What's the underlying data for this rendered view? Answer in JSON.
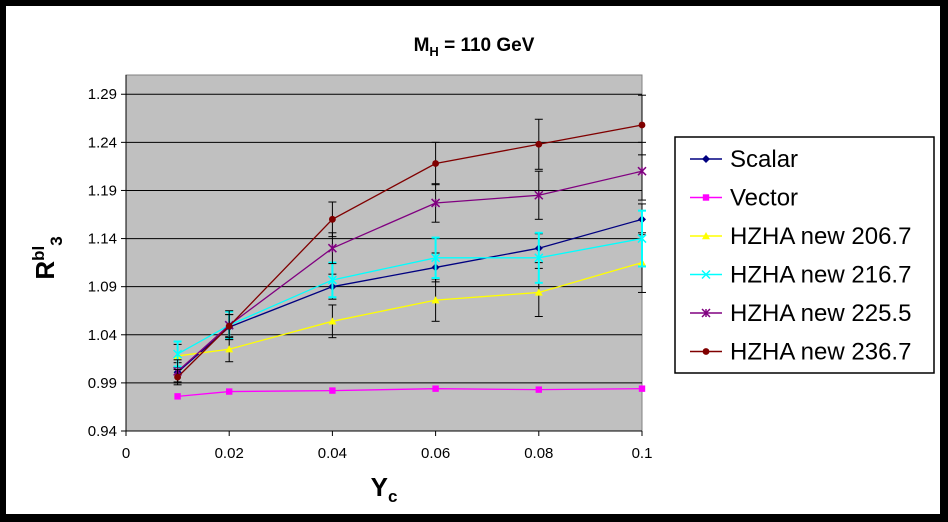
{
  "chart_data": {
    "type": "line",
    "title": "M",
    "title_sub": "H",
    "title_rest": " = 110 GeV",
    "xlabel": "Y",
    "xlabel_sub": "c",
    "ylabel": "R",
    "ylabel_sup": "bl",
    "ylabel_sub": "3",
    "xlim": [
      0,
      0.1
    ],
    "ylim": [
      0.94,
      1.31
    ],
    "x_ticks": [
      "0",
      "0.02",
      "0.04",
      "0.06",
      "0.08",
      "0.1"
    ],
    "x_tick_values": [
      0,
      0.02,
      0.04,
      0.06,
      0.08,
      0.1
    ],
    "y_ticks": [
      "0.94",
      "0.99",
      "1.04",
      "1.09",
      "1.14",
      "1.19",
      "1.24",
      "1.29"
    ],
    "y_tick_values": [
      0.94,
      0.99,
      1.04,
      1.09,
      1.14,
      1.19,
      1.24,
      1.29
    ],
    "grid": "horizontal",
    "plot_background": "#c0c0c0",
    "legend_position": "right",
    "x": [
      0.01,
      0.02,
      0.04,
      0.06,
      0.08,
      0.1
    ],
    "series": [
      {
        "name": "Scalar",
        "color": "#000080",
        "marker": "diamond",
        "values": [
          1.001,
          1.048,
          1.09,
          1.11,
          1.13,
          1.16
        ],
        "errors": [
          0.01,
          0.013,
          0.013,
          0.015,
          0.015,
          0.016
        ]
      },
      {
        "name": "Vector",
        "color": "#ff00ff",
        "marker": "square",
        "values": [
          0.976,
          0.981,
          0.982,
          0.984,
          0.983,
          0.984
        ],
        "errors": [
          0,
          0,
          0,
          0,
          0,
          0
        ]
      },
      {
        "name": "HZHA new 206.7",
        "color": "#ffff00",
        "marker": "triangle",
        "values": [
          1.018,
          1.025,
          1.054,
          1.076,
          1.084,
          1.115
        ],
        "errors": [
          0.012,
          0.013,
          0.017,
          0.022,
          0.025,
          0.031
        ]
      },
      {
        "name": "HZHA new 216.7",
        "color": "#00ffff",
        "marker": "x",
        "values": [
          1.02,
          1.05,
          1.097,
          1.12,
          1.12,
          1.14
        ],
        "errors": [
          0.013,
          0.014,
          0.018,
          0.021,
          0.026,
          0.029
        ]
      },
      {
        "name": "HZHA new 225.5",
        "color": "#800080",
        "marker": "star",
        "values": [
          1.002,
          1.05,
          1.13,
          1.177,
          1.185,
          1.21
        ],
        "errors": [
          0.012,
          0.015,
          0.016,
          0.02,
          0.025,
          0.03
        ]
      },
      {
        "name": "HZHA new 236.7",
        "color": "#800000",
        "marker": "circle",
        "values": [
          0.996,
          1.049,
          1.16,
          1.218,
          1.238,
          1.258
        ],
        "errors": [
          0.008,
          0.012,
          0.018,
          0.022,
          0.026,
          0.031
        ]
      }
    ]
  }
}
